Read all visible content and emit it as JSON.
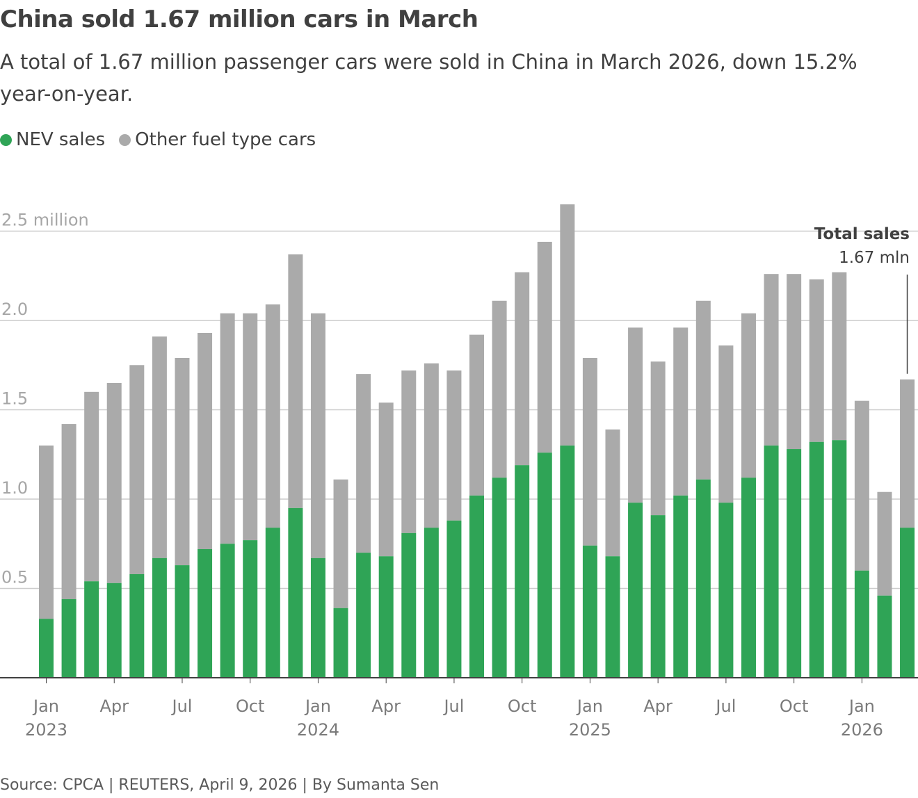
{
  "title": "China sold 1.67 million cars in March",
  "subtitle": "A total of 1.67 million passenger cars were sold in China in March 2026, down 15.2% year-on-year.",
  "source": "Source: CPCA | REUTERS, April 9, 2026 | By Sumanta Sen",
  "colors": {
    "nev": "#2fa456",
    "other": "#aaaaaa",
    "grid": "#cccccc",
    "axis": "#404040"
  },
  "chart_data": {
    "type": "bar",
    "stacked": true,
    "title": "China sold 1.67 million cars in March",
    "ylim": [
      0,
      2.7
    ],
    "yticks": [
      {
        "value": 0.5,
        "label": "0.5"
      },
      {
        "value": 1.0,
        "label": "1.0"
      },
      {
        "value": 1.5,
        "label": "1.5"
      },
      {
        "value": 2.0,
        "label": "2.0"
      },
      {
        "value": 2.5,
        "label": "2.5 million"
      }
    ],
    "grid": true,
    "legend_placement": "top-left",
    "categories": [
      "2023-01",
      "2023-02",
      "2023-03",
      "2023-04",
      "2023-05",
      "2023-06",
      "2023-07",
      "2023-08",
      "2023-09",
      "2023-10",
      "2023-11",
      "2023-12",
      "2024-01",
      "2024-02",
      "2024-03",
      "2024-04",
      "2024-05",
      "2024-06",
      "2024-07",
      "2024-08",
      "2024-09",
      "2024-10",
      "2024-11",
      "2024-12",
      "2025-01",
      "2025-02",
      "2025-03",
      "2025-04",
      "2025-05",
      "2025-06",
      "2025-07",
      "2025-08",
      "2025-09",
      "2025-10",
      "2025-11",
      "2025-12",
      "2026-01",
      "2026-02",
      "2026-03"
    ],
    "xticks": [
      {
        "index": 0,
        "label": "Jan",
        "year": "2023"
      },
      {
        "index": 3,
        "label": "Apr"
      },
      {
        "index": 6,
        "label": "Jul"
      },
      {
        "index": 9,
        "label": "Oct"
      },
      {
        "index": 12,
        "label": "Jan",
        "year": "2024"
      },
      {
        "index": 15,
        "label": "Apr"
      },
      {
        "index": 18,
        "label": "Jul"
      },
      {
        "index": 21,
        "label": "Oct"
      },
      {
        "index": 24,
        "label": "Jan",
        "year": "2025"
      },
      {
        "index": 27,
        "label": "Apr"
      },
      {
        "index": 30,
        "label": "Jul"
      },
      {
        "index": 33,
        "label": "Oct"
      },
      {
        "index": 36,
        "label": "Jan",
        "year": "2026"
      }
    ],
    "series": [
      {
        "name": "NEV sales",
        "values": [
          0.33,
          0.44,
          0.54,
          0.53,
          0.58,
          0.67,
          0.63,
          0.72,
          0.75,
          0.77,
          0.84,
          0.95,
          0.67,
          0.39,
          0.7,
          0.68,
          0.81,
          0.84,
          0.88,
          1.02,
          1.12,
          1.19,
          1.26,
          1.3,
          0.74,
          0.68,
          0.98,
          0.91,
          1.02,
          1.11,
          0.98,
          1.12,
          1.3,
          1.28,
          1.32,
          1.33,
          0.6,
          0.46,
          0.84
        ]
      },
      {
        "name": "Other fuel type cars",
        "values": [
          0.97,
          0.98,
          1.06,
          1.12,
          1.17,
          1.24,
          1.16,
          1.21,
          1.29,
          1.27,
          1.25,
          1.42,
          1.37,
          0.72,
          1.0,
          0.86,
          0.91,
          0.92,
          0.84,
          0.9,
          0.99,
          1.08,
          1.18,
          1.35,
          1.05,
          0.71,
          0.98,
          0.86,
          0.94,
          1.0,
          0.88,
          0.92,
          0.96,
          0.98,
          0.91,
          0.94,
          0.95,
          0.58,
          0.83
        ]
      }
    ],
    "annotation": {
      "title": "Total sales",
      "text": "1.67 mln",
      "index": 38
    }
  }
}
